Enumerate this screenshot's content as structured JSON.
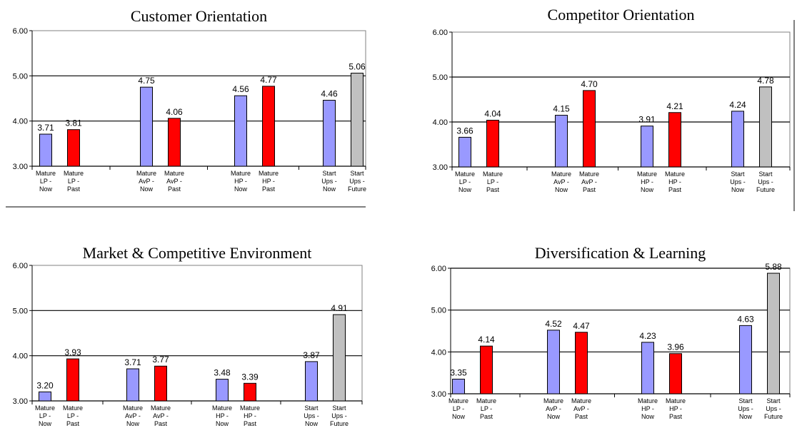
{
  "colors": {
    "now": "#9999ff",
    "past": "#ff0000",
    "future": "#c0c0c0",
    "outline": "#000000"
  },
  "chart_data": [
    {
      "type": "bar",
      "title": "Customer Orientation",
      "ylim": [
        3.0,
        6.0
      ],
      "yticks": [
        "3.00",
        "4.00",
        "5.00",
        "6.00"
      ],
      "categories": [
        [
          "Mature",
          "LP -",
          "Now"
        ],
        [
          "Mature",
          "LP -",
          "Past"
        ],
        [
          "Mature",
          "AvP -",
          "Now"
        ],
        [
          "Mature",
          "AvP -",
          "Past"
        ],
        [
          "Mature",
          "HP -",
          "Now"
        ],
        [
          "Mature",
          "HP -",
          "Past"
        ],
        [
          "Start",
          "Ups -",
          "Now"
        ],
        [
          "Start",
          "Ups -",
          "Future"
        ]
      ],
      "values": [
        3.71,
        3.81,
        4.75,
        4.06,
        4.56,
        4.77,
        4.46,
        5.06
      ],
      "value_labels": [
        "3.71",
        "3.81",
        "4.75",
        "4.06",
        "4.56",
        "4.77",
        "4.46",
        "5.06"
      ],
      "bar_kinds": [
        "now",
        "past",
        "now",
        "past",
        "now",
        "past",
        "now",
        "future"
      ],
      "gridlines": [
        4.0,
        5.0
      ]
    },
    {
      "type": "bar",
      "title": "Competitor Orientation",
      "ylim": [
        3.0,
        6.0
      ],
      "yticks": [
        "3.00",
        "4.00",
        "5.00",
        "6.00"
      ],
      "categories": [
        [
          "Mature",
          "LP -",
          "Now"
        ],
        [
          "Mature",
          "LP -",
          "Past"
        ],
        [
          "Mature",
          "AvP -",
          "Now"
        ],
        [
          "Mature",
          "AvP -",
          "Past"
        ],
        [
          "Mature",
          "HP -",
          "Now"
        ],
        [
          "Mature",
          "HP -",
          "Past"
        ],
        [
          "Start",
          "Ups -",
          "Now"
        ],
        [
          "Start",
          "Ups -",
          "Future"
        ]
      ],
      "values": [
        3.66,
        4.04,
        4.15,
        4.7,
        3.91,
        4.21,
        4.24,
        4.78
      ],
      "value_labels": [
        "3.66",
        "4.04",
        "4.15",
        "4.70",
        "3.91",
        "4.21",
        "4.24",
        "4.78"
      ],
      "bar_kinds": [
        "now",
        "past",
        "now",
        "past",
        "now",
        "past",
        "now",
        "future"
      ],
      "gridlines": [
        4.0,
        5.0
      ]
    },
    {
      "type": "bar",
      "title": "Market & Competitive Environment",
      "ylim": [
        3.0,
        6.0
      ],
      "yticks": [
        "3.00",
        "4.00",
        "5.00",
        "6.00"
      ],
      "categories": [
        [
          "Mature",
          "LP -",
          "Now"
        ],
        [
          "Mature",
          "LP -",
          "Past"
        ],
        [
          "Mature",
          "AvP -",
          "Now"
        ],
        [
          "Mature",
          "AvP -",
          "Past"
        ],
        [
          "Mature",
          "HP -",
          "Now"
        ],
        [
          "Mature",
          "HP -",
          "Past"
        ],
        [
          "Start",
          "Ups -",
          "Now"
        ],
        [
          "Start",
          "Ups -",
          "Future"
        ]
      ],
      "values": [
        3.2,
        3.93,
        3.71,
        3.77,
        3.48,
        3.39,
        3.87,
        4.91
      ],
      "value_labels": [
        "3.20",
        "3.93",
        "3.71",
        "3.77",
        "3.48",
        "3.39",
        "3.87",
        "4.91"
      ],
      "bar_kinds": [
        "now",
        "past",
        "now",
        "past",
        "now",
        "past",
        "now",
        "future"
      ],
      "gridlines": [
        4.0,
        5.0
      ]
    },
    {
      "type": "bar",
      "title": "Diversification & Learning",
      "ylim": [
        3.0,
        6.0
      ],
      "yticks": [
        "3.00",
        "4.00",
        "5.00",
        "6.00"
      ],
      "categories": [
        [
          "Mature",
          "LP -",
          "Now"
        ],
        [
          "Mature",
          "LP -",
          "Past"
        ],
        [
          "Mature",
          "AvP -",
          "Now"
        ],
        [
          "Mature",
          "AvP -",
          "Past"
        ],
        [
          "Mature",
          "HP -",
          "Now"
        ],
        [
          "Mature",
          "HP -",
          "Past"
        ],
        [
          "Start",
          "Ups -",
          "Now"
        ],
        [
          "Start",
          "Ups -",
          "Future"
        ]
      ],
      "values": [
        3.35,
        4.14,
        4.52,
        4.47,
        4.23,
        3.96,
        4.63,
        5.88
      ],
      "value_labels": [
        "3.35",
        "4.14",
        "4.52",
        "4.47",
        "4.23",
        "3.96",
        "4.63",
        "5.88"
      ],
      "bar_kinds": [
        "now",
        "past",
        "now",
        "past",
        "now",
        "past",
        "now",
        "future"
      ],
      "gridlines": [
        4.0,
        5.0,
        6.0
      ]
    }
  ]
}
